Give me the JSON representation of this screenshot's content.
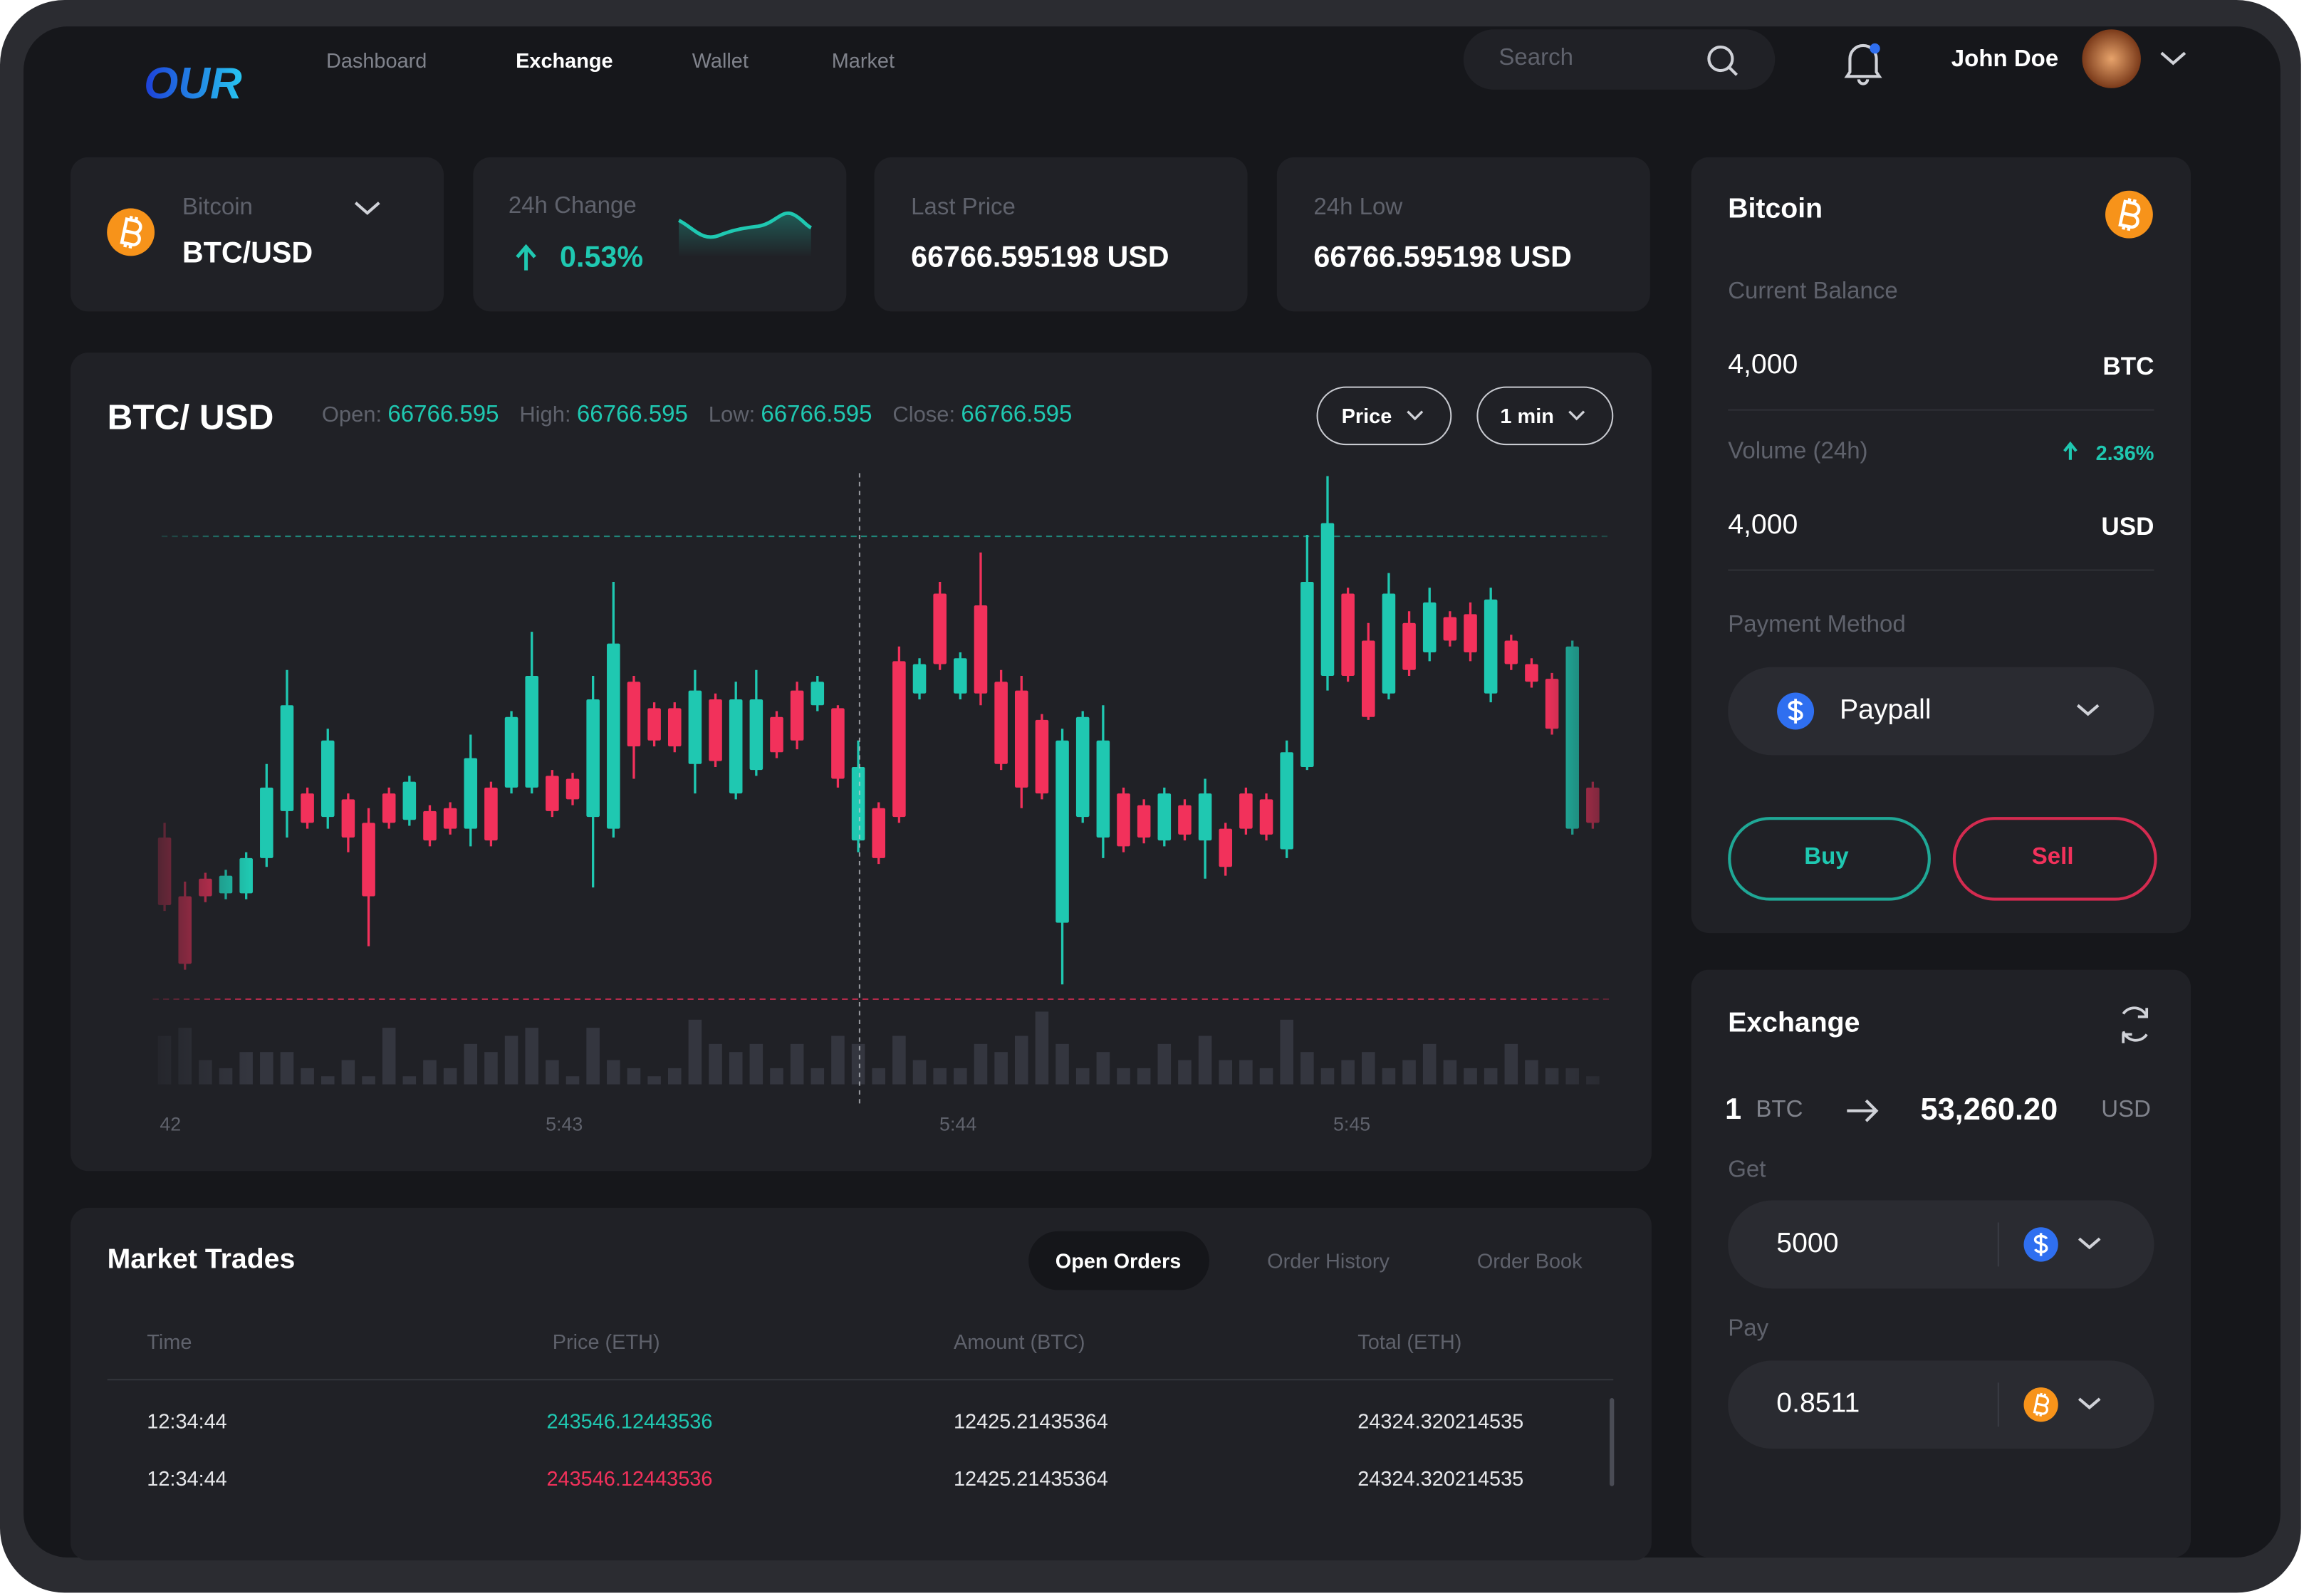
{
  "header": {
    "logo": "OUR",
    "nav": [
      "Dashboard",
      "Exchange",
      "Wallet",
      "Market"
    ],
    "search": "Search",
    "user": "John Doe"
  },
  "tickers": [
    {
      "label": "Bitcoin",
      "value": "BTC/USD"
    },
    {
      "label": "24h Change",
      "value": "0.53%"
    },
    {
      "label": "Last Price",
      "value": "66766.595198 USD"
    },
    {
      "label": "24h Low",
      "value": "66766.595198 USD"
    }
  ],
  "chart_header": {
    "ohlc": [
      {
        "label": "Open:",
        "value": "66766.595"
      },
      {
        "label": "High:",
        "value": "66766.595"
      },
      {
        "label": "Low:",
        "value": "66766.595"
      },
      {
        "label": "Close:",
        "value": "66766.595"
      }
    ],
    "buttons": [
      "Price",
      "1 min"
    ]
  },
  "chart_data": {
    "type": "candlestick",
    "title": "BTC/ USD",
    "up_color": "#1fc8b1",
    "down_color": "#f2315b",
    "volume_color": "#34363f",
    "ylim": [
      0,
      100
    ],
    "volume_lim": [
      0,
      10
    ],
    "xlabels": [
      "42",
      "5:43",
      "5:44",
      "5:45"
    ],
    "open": [
      32.5,
      22.5,
      25.5,
      23,
      23,
      29,
      37,
      40,
      36,
      39,
      35,
      40,
      35.5,
      37,
      37.5,
      34,
      41,
      41,
      41,
      43,
      42.5,
      36,
      34,
      59,
      54.5,
      54.5,
      45,
      56,
      40,
      44,
      53,
      57.5,
      55,
      54.5,
      32,
      37.5,
      62.5,
      57,
      74,
      57,
      72,
      59,
      57.5,
      52.5,
      18,
      36,
      32.5,
      40,
      38,
      32,
      38,
      32,
      34,
      40,
      39,
      30.5,
      44.5,
      60,
      74,
      66,
      57,
      69,
      64,
      70,
      70.5,
      57,
      66,
      62,
      59.5,
      34,
      41
    ],
    "high": [
      35,
      25,
      26.5,
      27,
      30,
      45,
      61,
      41,
      51,
      40,
      37.5,
      41,
      43,
      38,
      38.5,
      50,
      42,
      54,
      67.5,
      44,
      43.5,
      60,
      76,
      60,
      55.5,
      55.5,
      61,
      57,
      59,
      61,
      54,
      59,
      60,
      55,
      49,
      38.5,
      65,
      63,
      76,
      64,
      81,
      61,
      60,
      53.5,
      51,
      54,
      55,
      41,
      39,
      41,
      39,
      42.5,
      35,
      41,
      40,
      49,
      84,
      94,
      75,
      69,
      77.5,
      71,
      75,
      71,
      72.5,
      75,
      67,
      63,
      60.5,
      66,
      42
    ],
    "low": [
      20,
      10,
      21.5,
      22,
      22,
      27.5,
      32.5,
      34,
      34,
      30,
      14,
      34,
      34.5,
      31,
      33,
      31,
      31,
      40,
      40,
      36,
      38,
      24,
      32.5,
      42.5,
      48,
      47,
      40,
      44.5,
      39,
      43,
      46,
      47.5,
      54,
      41,
      30,
      28,
      35,
      56,
      61,
      56,
      55,
      44,
      37.5,
      39,
      7.5,
      35,
      29,
      30,
      31.5,
      31,
      32,
      25.5,
      26,
      33,
      32,
      29,
      44,
      57.5,
      59,
      52.5,
      56,
      60,
      62.5,
      65,
      62.5,
      55.5,
      61,
      58,
      50,
      33,
      34
    ],
    "close": [
      21,
      11,
      22.5,
      26,
      29,
      41,
      55,
      35,
      49,
      32.5,
      22.5,
      35,
      42,
      32,
      34,
      46,
      32,
      53,
      60,
      37,
      39,
      56,
      65.5,
      48,
      49,
      48,
      57.5,
      45.5,
      56,
      56,
      47,
      49,
      59,
      42.5,
      44.5,
      29,
      36,
      62,
      62,
      63,
      57,
      45,
      41,
      40,
      49,
      53,
      49,
      31,
      32.5,
      40,
      33,
      40,
      27.5,
      34,
      33,
      47,
      76,
      86,
      60,
      53,
      74,
      61,
      72.5,
      66,
      64,
      73,
      62,
      59,
      51,
      65,
      35
    ],
    "volume": [
      6,
      7,
      3,
      2,
      4,
      4,
      4,
      2,
      1,
      3,
      1,
      7,
      1,
      3,
      2,
      5,
      4,
      6,
      7,
      3,
      1,
      7,
      3,
      2,
      1,
      2,
      8,
      5,
      4,
      5,
      2,
      5,
      2,
      6,
      5,
      2,
      6,
      3,
      2,
      2,
      5,
      4,
      6,
      9,
      5,
      2,
      4,
      2,
      2,
      5,
      3,
      6,
      3,
      3,
      2,
      8,
      4,
      2,
      3,
      4,
      2,
      3,
      5,
      3,
      2,
      2,
      5,
      3,
      2,
      2,
      1
    ]
  },
  "trades": {
    "title": "Market Trades",
    "tabs": [
      "Open Orders",
      "Order History",
      "Order Book"
    ],
    "columns": [
      "Time",
      "Price (ETH)",
      "Amount (BTC)",
      "Total (ETH)"
    ],
    "rows": [
      [
        "12:34:44",
        "243546.12443536",
        "12425.21435364",
        "24324.320214535"
      ],
      [
        "12:34:44",
        "243546.12443536",
        "12425.21435364",
        "24324.320214535"
      ]
    ],
    "price_colors": [
      "#1fc8b1",
      "#f2315b"
    ]
  },
  "wallet": {
    "title": "Bitcoin",
    "balance_label": "Current Balance",
    "balance": "4,000",
    "balance_unit": "BTC",
    "volume_label": "Volume (24h)",
    "volume_change": "2.36%",
    "volume": "4,000",
    "volume_unit": "USD",
    "payment_label": "Payment Method",
    "payment": "Paypall",
    "buy": "Buy",
    "sell": "Sell"
  },
  "exchange": {
    "title": "Exchange",
    "from_amount": "1",
    "from_unit": "BTC",
    "to_amount": "53,260.20",
    "to_unit": "USD",
    "get_label": "Get",
    "get_value": "5000",
    "pay_label": "Pay",
    "pay_value": "0.8511"
  }
}
